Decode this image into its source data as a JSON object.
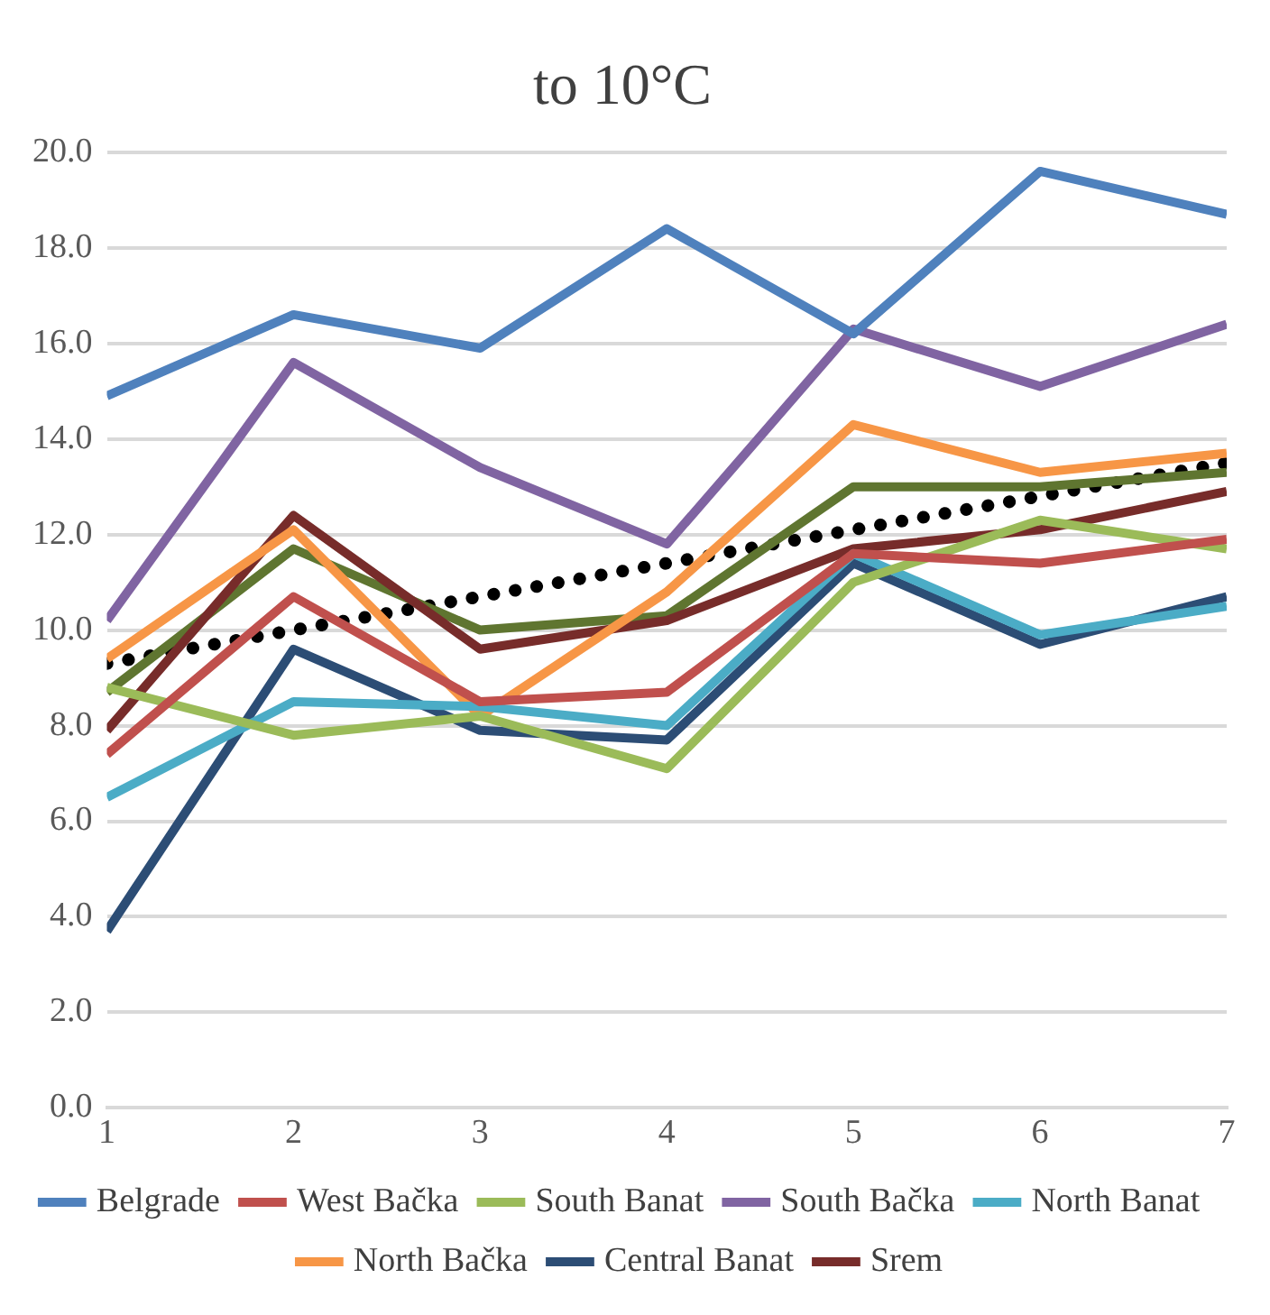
{
  "chart_data": {
    "type": "line",
    "title": "to 10°C",
    "x": [
      1,
      2,
      3,
      4,
      5,
      6,
      7
    ],
    "xlim": [
      1,
      7
    ],
    "xticks": [
      1,
      2,
      3,
      4,
      5,
      6,
      7
    ],
    "ylim": [
      0,
      20
    ],
    "yticks": [
      {
        "value": 0,
        "label": "0.0"
      },
      {
        "value": 2,
        "label": "2.0"
      },
      {
        "value": 4,
        "label": "4.0"
      },
      {
        "value": 6,
        "label": "6.0"
      },
      {
        "value": 8,
        "label": "8.0"
      },
      {
        "value": 10,
        "label": "10.0"
      },
      {
        "value": 12,
        "label": "12.0"
      },
      {
        "value": 14,
        "label": "14.0"
      },
      {
        "value": 16,
        "label": "16.0"
      },
      {
        "value": 18,
        "label": "18.0"
      },
      {
        "value": 20,
        "label": "20.0"
      }
    ],
    "grid": "y",
    "legend": "bottom",
    "marker": "none",
    "line_style": "solid",
    "series": [
      {
        "name": "Belgrade",
        "color": "#4f81bd",
        "values": [
          14.9,
          16.6,
          15.9,
          18.4,
          16.2,
          19.6,
          18.7
        ]
      },
      {
        "name": "West Bačka",
        "color": "#c0504d",
        "values": [
          7.4,
          10.7,
          8.5,
          8.7,
          11.6,
          11.4,
          11.9
        ]
      },
      {
        "name": "South Banat",
        "color": "#9bbb59",
        "values": [
          8.8,
          7.8,
          8.2,
          7.1,
          11.0,
          12.3,
          11.7
        ]
      },
      {
        "name": "South Bačka",
        "color": "#8064a2",
        "values": [
          10.2,
          15.6,
          13.4,
          11.8,
          16.3,
          15.1,
          16.4
        ]
      },
      {
        "name": "North Banat",
        "color": "#4bacc6",
        "values": [
          6.5,
          8.5,
          8.4,
          8.0,
          11.6,
          9.9,
          10.5
        ]
      },
      {
        "name": "North Bačka",
        "color": "#f79646",
        "values": [
          9.4,
          12.1,
          8.2,
          10.8,
          14.3,
          13.3,
          13.7
        ]
      },
      {
        "name": "Central Banat",
        "color": "#2c4d75",
        "values": [
          3.7,
          9.6,
          7.9,
          7.7,
          11.4,
          9.7,
          10.7
        ]
      },
      {
        "name": "Srem",
        "color": "#772c2a",
        "values": [
          7.9,
          12.4,
          9.6,
          10.2,
          11.7,
          12.1,
          12.9
        ]
      },
      {
        "color": "#5f7530",
        "values": [
          8.7,
          11.7,
          10.0,
          10.3,
          13.0,
          13.0,
          13.3
        ]
      },
      {
        "type": "line",
        "color": "#000000",
        "line_style": "dotted",
        "x": [
          1,
          7
        ],
        "values": [
          9.3,
          13.5
        ]
      }
    ]
  }
}
